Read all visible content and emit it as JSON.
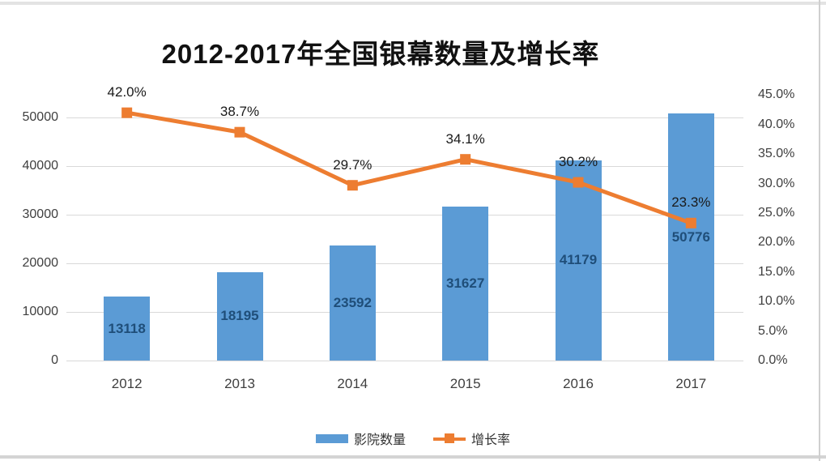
{
  "chart_data": {
    "type": "bar",
    "combo": "bar+line",
    "title": "2012-2017年全国银幕数量及增长率",
    "categories": [
      "2012",
      "2013",
      "2014",
      "2015",
      "2016",
      "2017"
    ],
    "series": [
      {
        "name": "影院数量",
        "type": "bar",
        "axis": "left",
        "values": [
          13118,
          18195,
          23592,
          31627,
          41179,
          50776
        ],
        "labels": [
          "13118",
          "18195",
          "23592",
          "31627",
          "41179",
          "50776"
        ],
        "color": "#5b9bd5",
        "label_color": "#1f4e79"
      },
      {
        "name": "增长率",
        "type": "line",
        "axis": "right",
        "values": [
          42.0,
          38.7,
          29.7,
          34.1,
          30.2,
          23.3
        ],
        "labels": [
          "42.0%",
          "38.7%",
          "29.7%",
          "34.1%",
          "30.2%",
          "23.3%"
        ],
        "color": "#ed7d31",
        "marker": "square",
        "label_color": "#1a1a1a"
      }
    ],
    "left_axis": {
      "min": 0,
      "max": 50000,
      "step": 10000,
      "ticks": [
        "0",
        "10000",
        "20000",
        "30000",
        "40000",
        "50000"
      ]
    },
    "right_axis": {
      "min": 0,
      "max": 45,
      "step": 5,
      "ticks": [
        "0.0%",
        "5.0%",
        "10.0%",
        "15.0%",
        "20.0%",
        "25.0%",
        "30.0%",
        "35.0%",
        "40.0%",
        "45.0%"
      ]
    },
    "grid": true,
    "gridline_color": "#d9d9d9",
    "legend_position": "bottom",
    "legend": [
      "影院数量",
      "增长率"
    ]
  }
}
